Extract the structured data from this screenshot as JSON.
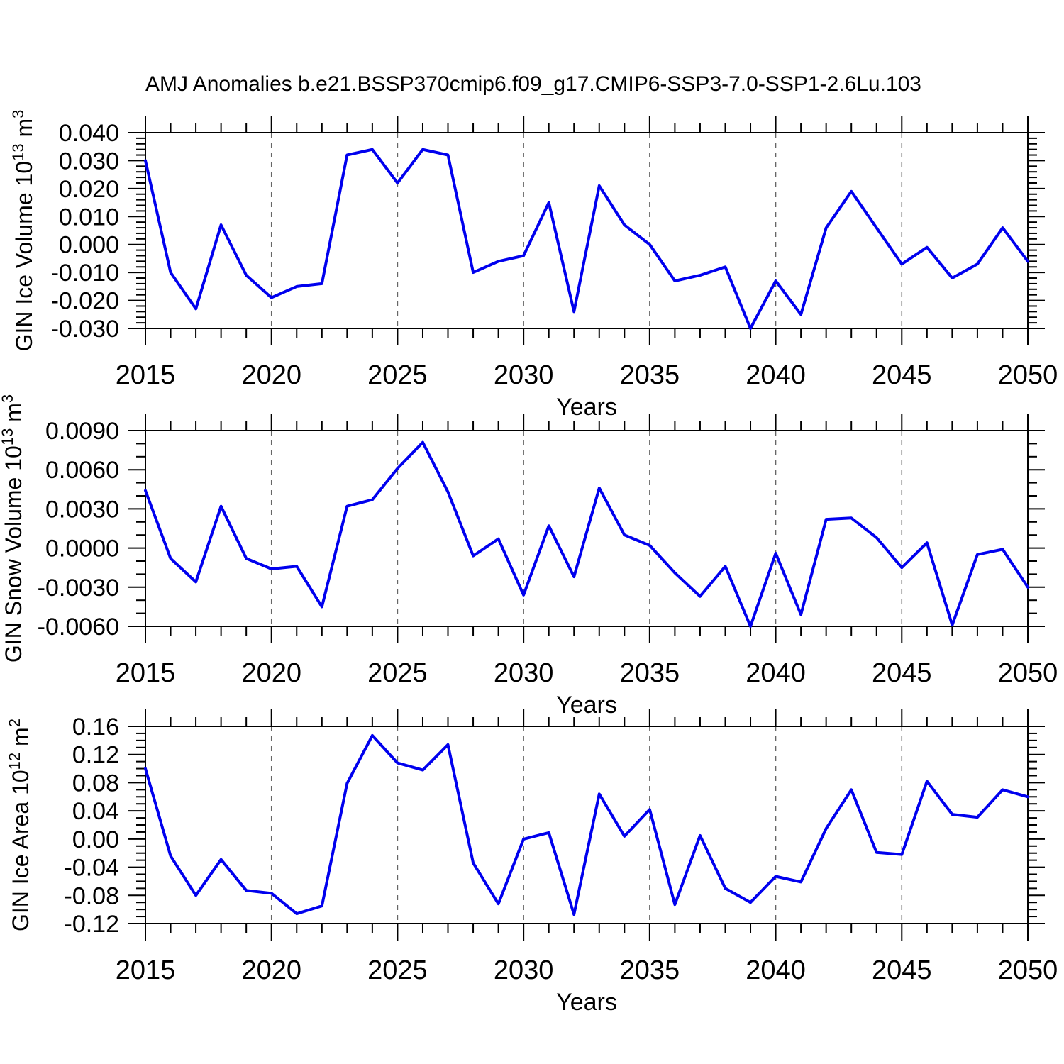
{
  "title": "AMJ Anomalies b.e21.BSSP370cmip6.f09_g17.CMIP6-SSP3-7.0-SSP1-2.6Lu.103",
  "colors": {
    "line": "#0000ee",
    "axis": "#000000",
    "grid": "#666666"
  },
  "x_axis": {
    "label": "Years",
    "start": 2015,
    "end": 2050,
    "tick_labels": [
      "2015",
      "2020",
      "2025",
      "2030",
      "2035",
      "2040",
      "2045",
      "2050"
    ],
    "grid_years": [
      2020,
      2025,
      2030,
      2035,
      2040,
      2045
    ]
  },
  "chart_data": [
    {
      "type": "line",
      "ylabel": "GIN Ice Volume 10^13 m^3",
      "ylabel_parts": [
        [
          "GIN Ice Volume 10",
          false
        ],
        [
          "13",
          true
        ],
        [
          " m",
          false
        ],
        [
          "3",
          true
        ]
      ],
      "ylim": [
        -0.03,
        0.04
      ],
      "ymajor": 0.01,
      "yminor": 0.002,
      "ydecimals": 3,
      "x": [
        2015,
        2016,
        2017,
        2018,
        2019,
        2020,
        2021,
        2022,
        2023,
        2024,
        2025,
        2026,
        2027,
        2028,
        2029,
        2030,
        2031,
        2032,
        2033,
        2034,
        2035,
        2036,
        2037,
        2038,
        2039,
        2040,
        2041,
        2042,
        2043,
        2044,
        2045,
        2046,
        2047,
        2048,
        2049,
        2050
      ],
      "values": [
        0.03,
        -0.01,
        -0.023,
        0.007,
        -0.011,
        -0.019,
        -0.015,
        -0.014,
        0.032,
        0.034,
        0.022,
        0.034,
        0.032,
        -0.01,
        -0.006,
        -0.004,
        0.015,
        -0.024,
        0.021,
        0.007,
        0.0,
        -0.013,
        -0.011,
        -0.008,
        -0.03,
        -0.013,
        -0.025,
        0.006,
        0.019,
        0.006,
        -0.007,
        -0.001,
        -0.012,
        -0.007,
        0.006,
        -0.006
      ]
    },
    {
      "type": "line",
      "ylabel": "GIN Snow Volume 10^13 m^3",
      "ylabel_parts": [
        [
          "GIN Snow Volume 10",
          false
        ],
        [
          "13",
          true
        ],
        [
          " m",
          false
        ],
        [
          "3",
          true
        ]
      ],
      "ylim": [
        -0.006,
        0.009
      ],
      "ymajor": 0.003,
      "yminor": 0.001,
      "ydecimals": 4,
      "x": [
        2015,
        2016,
        2017,
        2018,
        2019,
        2020,
        2021,
        2022,
        2023,
        2024,
        2025,
        2026,
        2027,
        2028,
        2029,
        2030,
        2031,
        2032,
        2033,
        2034,
        2035,
        2036,
        2037,
        2038,
        2039,
        2040,
        2041,
        2042,
        2043,
        2044,
        2045,
        2046,
        2047,
        2048,
        2049,
        2050
      ],
      "values": [
        0.0044,
        -0.0008,
        -0.0026,
        0.0032,
        -0.0008,
        -0.0016,
        -0.0014,
        -0.0045,
        0.0032,
        0.0037,
        0.0061,
        0.0081,
        0.0043,
        -0.0006,
        0.0007,
        -0.0036,
        0.0017,
        -0.0022,
        0.0046,
        0.001,
        0.0002,
        -0.0019,
        -0.0037,
        -0.0014,
        -0.006,
        -0.0004,
        -0.0051,
        0.0022,
        0.0023,
        0.0008,
        -0.0015,
        0.0004,
        -0.0059,
        -0.0005,
        -0.0001,
        -0.003
      ]
    },
    {
      "type": "line",
      "ylabel": "GIN Ice Area 10^12 m^2",
      "ylabel_parts": [
        [
          "GIN Ice Area 10",
          false
        ],
        [
          "12",
          true
        ],
        [
          " m",
          false
        ],
        [
          "2",
          true
        ]
      ],
      "ylim": [
        -0.12,
        0.16
      ],
      "ymajor": 0.04,
      "yminor": 0.01,
      "ydecimals": 2,
      "x": [
        2015,
        2016,
        2017,
        2018,
        2019,
        2020,
        2021,
        2022,
        2023,
        2024,
        2025,
        2026,
        2027,
        2028,
        2029,
        2030,
        2031,
        2032,
        2033,
        2034,
        2035,
        2036,
        2037,
        2038,
        2039,
        2040,
        2041,
        2042,
        2043,
        2044,
        2045,
        2046,
        2047,
        2048,
        2049,
        2050
      ],
      "values": [
        0.1,
        -0.024,
        -0.08,
        -0.029,
        -0.073,
        -0.077,
        -0.106,
        -0.095,
        0.079,
        0.147,
        0.108,
        0.098,
        0.134,
        -0.034,
        -0.092,
        0.0,
        0.009,
        -0.107,
        0.064,
        0.004,
        0.042,
        -0.093,
        0.005,
        -0.07,
        -0.09,
        -0.053,
        -0.061,
        0.015,
        0.07,
        -0.019,
        -0.022,
        0.082,
        0.035,
        0.031,
        0.07,
        0.06
      ]
    }
  ]
}
